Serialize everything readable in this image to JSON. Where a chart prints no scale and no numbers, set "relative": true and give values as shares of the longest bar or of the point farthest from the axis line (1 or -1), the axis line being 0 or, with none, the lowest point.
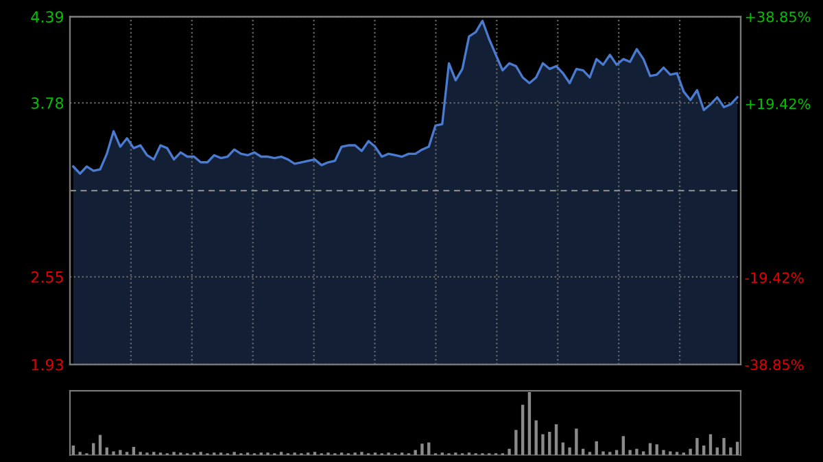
{
  "chart_data": [
    {
      "type": "area",
      "categories": [
        null,
        null,
        null,
        null,
        null,
        null,
        null,
        null,
        null,
        null,
        null,
        null,
        null,
        null,
        null,
        null,
        null,
        null,
        null,
        null,
        null,
        null,
        null,
        null,
        null,
        null,
        null,
        null,
        null,
        null,
        null,
        null,
        null,
        null,
        null,
        null,
        null,
        null,
        null,
        null,
        null,
        null,
        null,
        null,
        null,
        null,
        null,
        null,
        null,
        null,
        null,
        null,
        null,
        null,
        null,
        null,
        null,
        null,
        null,
        null,
        null,
        null,
        null,
        null,
        null,
        null,
        null,
        null,
        null,
        null,
        null,
        null,
        null,
        null,
        null,
        null,
        null,
        null,
        null,
        null,
        null,
        null,
        null,
        null,
        null,
        null,
        null,
        null,
        null,
        null,
        null,
        null,
        null,
        null,
        null,
        null,
        null,
        null,
        null,
        null
      ],
      "series": [
        {
          "color": "#4a7bd0",
          "values": [
            3.33,
            3.28,
            3.33,
            3.3,
            3.31,
            3.42,
            3.58,
            3.47,
            3.53,
            3.46,
            3.48,
            3.41,
            3.38,
            3.48,
            3.46,
            3.38,
            3.43,
            3.4,
            3.4,
            3.36,
            3.36,
            3.41,
            3.39,
            3.4,
            3.45,
            3.42,
            3.41,
            3.43,
            3.4,
            3.4,
            3.39,
            3.4,
            3.38,
            3.35,
            3.36,
            3.37,
            3.38,
            3.34,
            3.36,
            3.37,
            3.47,
            3.48,
            3.48,
            3.44,
            3.51,
            3.47,
            3.4,
            3.42,
            3.41,
            3.4,
            3.42,
            3.42,
            3.45,
            3.47,
            3.62,
            3.63,
            4.06,
            3.94,
            4.02,
            4.25,
            4.28,
            4.36,
            4.23,
            4.12,
            4.01,
            4.06,
            4.04,
            3.96,
            3.92,
            3.96,
            4.06,
            4.02,
            4.04,
            3.99,
            3.92,
            4.02,
            4.01,
            3.96,
            4.09,
            4.05,
            4.12,
            4.05,
            4.09,
            4.07,
            4.16,
            4.09,
            3.97,
            3.98,
            4.03,
            3.98,
            3.99,
            3.86,
            3.8,
            3.87,
            3.73,
            3.77,
            3.82,
            3.75,
            3.77,
            3.82
          ]
        }
      ],
      "ylim": [
        1.93,
        4.39
      ],
      "yticks": [
        1.93,
        2.55,
        3.78,
        4.39
      ],
      "y2lim": [
        -38.85,
        38.85
      ],
      "y2ticks": [
        {
          "value": -38.85,
          "label": "-38.85%"
        },
        {
          "value": -19.42,
          "label": "-19.42%"
        },
        {
          "value": 19.42,
          "label": "+19.42%"
        },
        {
          "value": 38.85,
          "label": "+38.85%"
        }
      ],
      "ref_lines": [
        {
          "axis": "y",
          "value": 3.16,
          "color": "#888888",
          "line_style": "dashed"
        }
      ],
      "grid": true,
      "legend": false
    },
    {
      "type": "bar",
      "relative": true,
      "categories": [
        null,
        null,
        null,
        null,
        null,
        null,
        null,
        null,
        null,
        null,
        null,
        null,
        null,
        null,
        null,
        null,
        null,
        null,
        null,
        null,
        null,
        null,
        null,
        null,
        null,
        null,
        null,
        null,
        null,
        null,
        null,
        null,
        null,
        null,
        null,
        null,
        null,
        null,
        null,
        null,
        null,
        null,
        null,
        null,
        null,
        null,
        null,
        null,
        null,
        null,
        null,
        null,
        null,
        null,
        null,
        null,
        null,
        null,
        null,
        null,
        null,
        null,
        null,
        null,
        null,
        null,
        null,
        null,
        null,
        null,
        null,
        null,
        null,
        null,
        null,
        null,
        null,
        null,
        null,
        null,
        null,
        null,
        null,
        null,
        null,
        null,
        null,
        null,
        null,
        null,
        null,
        null,
        null,
        null,
        null,
        null,
        null,
        null,
        null,
        null
      ],
      "color": "#8a8a8a",
      "values": [
        0.15,
        0.05,
        0.03,
        0.19,
        0.32,
        0.12,
        0.06,
        0.08,
        0.05,
        0.13,
        0.05,
        0.04,
        0.05,
        0.04,
        0.03,
        0.05,
        0.04,
        0.03,
        0.04,
        0.05,
        0.03,
        0.04,
        0.04,
        0.03,
        0.05,
        0.03,
        0.04,
        0.03,
        0.04,
        0.04,
        0.03,
        0.05,
        0.03,
        0.04,
        0.03,
        0.04,
        0.05,
        0.03,
        0.04,
        0.03,
        0.04,
        0.03,
        0.04,
        0.05,
        0.03,
        0.04,
        0.03,
        0.04,
        0.03,
        0.04,
        0.03,
        0.08,
        0.18,
        0.2,
        0.03,
        0.04,
        0.03,
        0.04,
        0.03,
        0.04,
        0.03,
        0.03,
        0.03,
        0.03,
        0.03,
        0.1,
        0.4,
        0.8,
        1.0,
        0.55,
        0.33,
        0.37,
        0.49,
        0.2,
        0.12,
        0.42,
        0.1,
        0.05,
        0.22,
        0.06,
        0.05,
        0.08,
        0.3,
        0.08,
        0.1,
        0.06,
        0.19,
        0.17,
        0.08,
        0.06,
        0.05,
        0.04,
        0.1,
        0.27,
        0.15,
        0.33,
        0.12,
        0.27,
        0.12,
        0.21
      ]
    }
  ]
}
